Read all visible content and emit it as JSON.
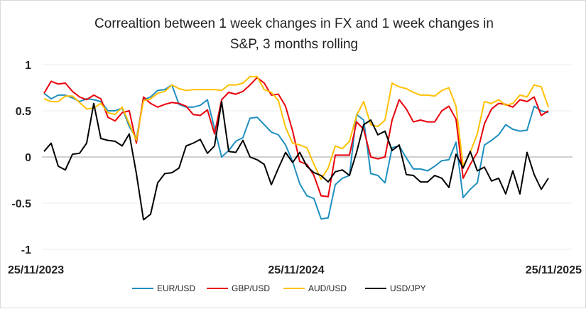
{
  "chart_data": {
    "type": "line",
    "title": [
      "Correaltion between 1 week changes in FX and 1 week changes in",
      "S&P, 3 months rolling"
    ],
    "xlabel": "",
    "ylabel": "",
    "ylim": [
      -1,
      1
    ],
    "yticks": [
      "1",
      "0.5",
      "0",
      "-0.5",
      "-1"
    ],
    "ytick_values": [
      1,
      0.5,
      0,
      -0.5,
      -1
    ],
    "xtick_labels": [
      "25/11/2023",
      "25/11/2024",
      "25/11/2025"
    ],
    "grid": true,
    "legend_position": "bottom",
    "x_note": "weekly observations, index 0..71 (approx.), Nov 2023 to Nov 2025",
    "series": [
      {
        "name": "EUR/USD",
        "color": "#1f8fbf",
        "values": [
          0.69,
          0.63,
          0.67,
          0.67,
          0.64,
          0.6,
          0.63,
          0.62,
          0.6,
          0.5,
          0.5,
          0.53,
          0.33,
          0.2,
          0.62,
          0.65,
          0.72,
          0.73,
          0.78,
          0.57,
          0.54,
          0.54,
          0.56,
          0.62,
          0.31,
          0.0,
          0.07,
          0.17,
          0.21,
          0.42,
          0.43,
          0.35,
          0.27,
          0.24,
          0.13,
          -0.05,
          -0.29,
          -0.42,
          -0.45,
          -0.67,
          -0.66,
          -0.3,
          -0.23,
          -0.2,
          0.46,
          0.4,
          -0.18,
          -0.2,
          -0.28,
          0.1,
          0.12,
          -0.01,
          -0.13,
          -0.13,
          -0.15,
          -0.1,
          -0.04,
          -0.03,
          0.16,
          -0.44,
          -0.35,
          -0.28,
          0.13,
          0.18,
          0.24,
          0.35,
          0.3,
          0.28,
          0.29,
          0.55,
          0.5,
          0.48
        ]
      },
      {
        "name": "GBP/USD",
        "color": "#e8000b",
        "values": [
          0.69,
          0.82,
          0.79,
          0.8,
          0.71,
          0.65,
          0.62,
          0.67,
          0.63,
          0.43,
          0.39,
          0.48,
          0.5,
          0.15,
          0.65,
          0.58,
          0.54,
          0.57,
          0.59,
          0.58,
          0.55,
          0.46,
          0.45,
          0.51,
          0.25,
          0.62,
          0.7,
          0.68,
          0.71,
          0.78,
          0.86,
          0.8,
          0.67,
          0.68,
          0.55,
          0.28,
          -0.05,
          -0.08,
          -0.2,
          -0.42,
          -0.43,
          0.02,
          0.02,
          0.02,
          0.38,
          0.3,
          0.0,
          -0.02,
          0.0,
          0.4,
          0.62,
          0.52,
          0.38,
          0.4,
          0.38,
          0.38,
          0.5,
          0.55,
          0.41,
          -0.23,
          -0.08,
          0.05,
          0.36,
          0.52,
          0.58,
          0.57,
          0.54,
          0.62,
          0.6,
          0.65,
          0.45,
          0.5
        ]
      },
      {
        "name": "AUD/USD",
        "color": "#ffc000",
        "values": [
          0.63,
          0.6,
          0.6,
          0.66,
          0.66,
          0.59,
          0.52,
          0.53,
          0.58,
          0.48,
          0.46,
          0.54,
          0.36,
          0.18,
          0.61,
          0.63,
          0.69,
          0.71,
          0.78,
          0.74,
          0.72,
          0.73,
          0.73,
          0.73,
          0.73,
          0.72,
          0.78,
          0.78,
          0.8,
          0.87,
          0.87,
          0.73,
          0.7,
          0.61,
          0.32,
          0.15,
          0.13,
          0.1,
          -0.08,
          -0.24,
          -0.12,
          0.12,
          0.09,
          0.17,
          0.45,
          0.6,
          0.35,
          0.33,
          0.4,
          0.8,
          0.76,
          0.74,
          0.7,
          0.67,
          0.67,
          0.66,
          0.72,
          0.75,
          0.55,
          -0.1,
          0.05,
          0.25,
          0.6,
          0.58,
          0.62,
          0.56,
          0.58,
          0.67,
          0.65,
          0.78,
          0.76,
          0.54
        ]
      },
      {
        "name": "USD/JPY",
        "color": "#000000",
        "values": [
          0.06,
          0.15,
          -0.1,
          -0.14,
          0.03,
          0.04,
          0.15,
          0.58,
          0.2,
          0.18,
          0.17,
          0.12,
          0.25,
          -0.18,
          -0.68,
          -0.62,
          -0.28,
          -0.18,
          -0.17,
          -0.12,
          0.12,
          0.15,
          0.19,
          0.04,
          0.12,
          0.6,
          0.06,
          0.05,
          0.18,
          0.0,
          -0.03,
          -0.08,
          -0.3,
          -0.12,
          0.05,
          -0.06,
          0.05,
          -0.1,
          -0.17,
          -0.2,
          -0.27,
          -0.16,
          -0.14,
          -0.2,
          0.05,
          0.35,
          0.4,
          0.24,
          0.28,
          0.07,
          0.13,
          -0.19,
          -0.2,
          -0.27,
          -0.27,
          -0.2,
          -0.23,
          -0.33,
          0.03,
          -0.12,
          0.06,
          -0.15,
          -0.11,
          -0.26,
          -0.23,
          -0.4,
          -0.15,
          -0.4,
          0.05,
          -0.19,
          -0.35,
          -0.23
        ]
      }
    ]
  }
}
